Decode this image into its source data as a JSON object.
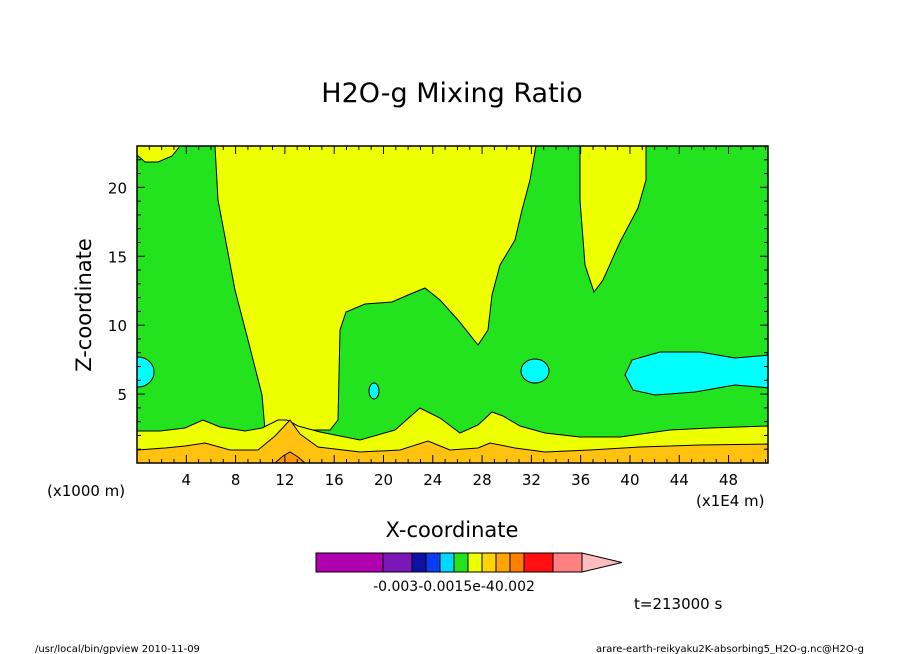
{
  "chart_data": {
    "type": "contour",
    "title": "H2O-g Mixing Ratio",
    "xlabel": "X-coordinate",
    "ylabel": "Z-coordinate",
    "x_unit_label": "(x1E4 m)",
    "z_unit_label": "(x1000 m)",
    "xlim": [
      0,
      51.2
    ],
    "ylim": [
      0,
      23
    ],
    "x_ticks": [
      4,
      8,
      12,
      16,
      20,
      24,
      28,
      32,
      36,
      40,
      44,
      48
    ],
    "x_tick_labels": [
      "4",
      "8",
      "12",
      "16",
      "20",
      "24",
      "28",
      "32",
      "36",
      "40",
      "44",
      "48"
    ],
    "y_ticks": [
      5,
      10,
      15,
      20
    ],
    "y_tick_labels": [
      "5",
      "10",
      "15",
      "20"
    ],
    "fill_colors": {
      "cyan": "#00ffff",
      "green": "#22e31d",
      "yellow": "#eeff00",
      "orange": "#ffc20e",
      "dark_orange": "#ff9800"
    },
    "colorbar": {
      "colors": [
        "#b000b0",
        "#7b16b8",
        "#1010a8",
        "#0a3cf0",
        "#00d8ff",
        "#22e31d",
        "#eeff00",
        "#ffd400",
        "#ffa500",
        "#ff7f00",
        "#ff1010",
        "#ff8080",
        "#ffbcbc"
      ],
      "tick_labels": [
        "-0.003",
        "-0.0015e-4",
        "0.002"
      ]
    },
    "time_label": "t=213000 s"
  },
  "footer": {
    "left": "/usr/local/bin/gpview   2010-11-09",
    "right": "arare-earth-reikyaku2K-absorbing5_H2O-g.nc@H2O-g"
  }
}
